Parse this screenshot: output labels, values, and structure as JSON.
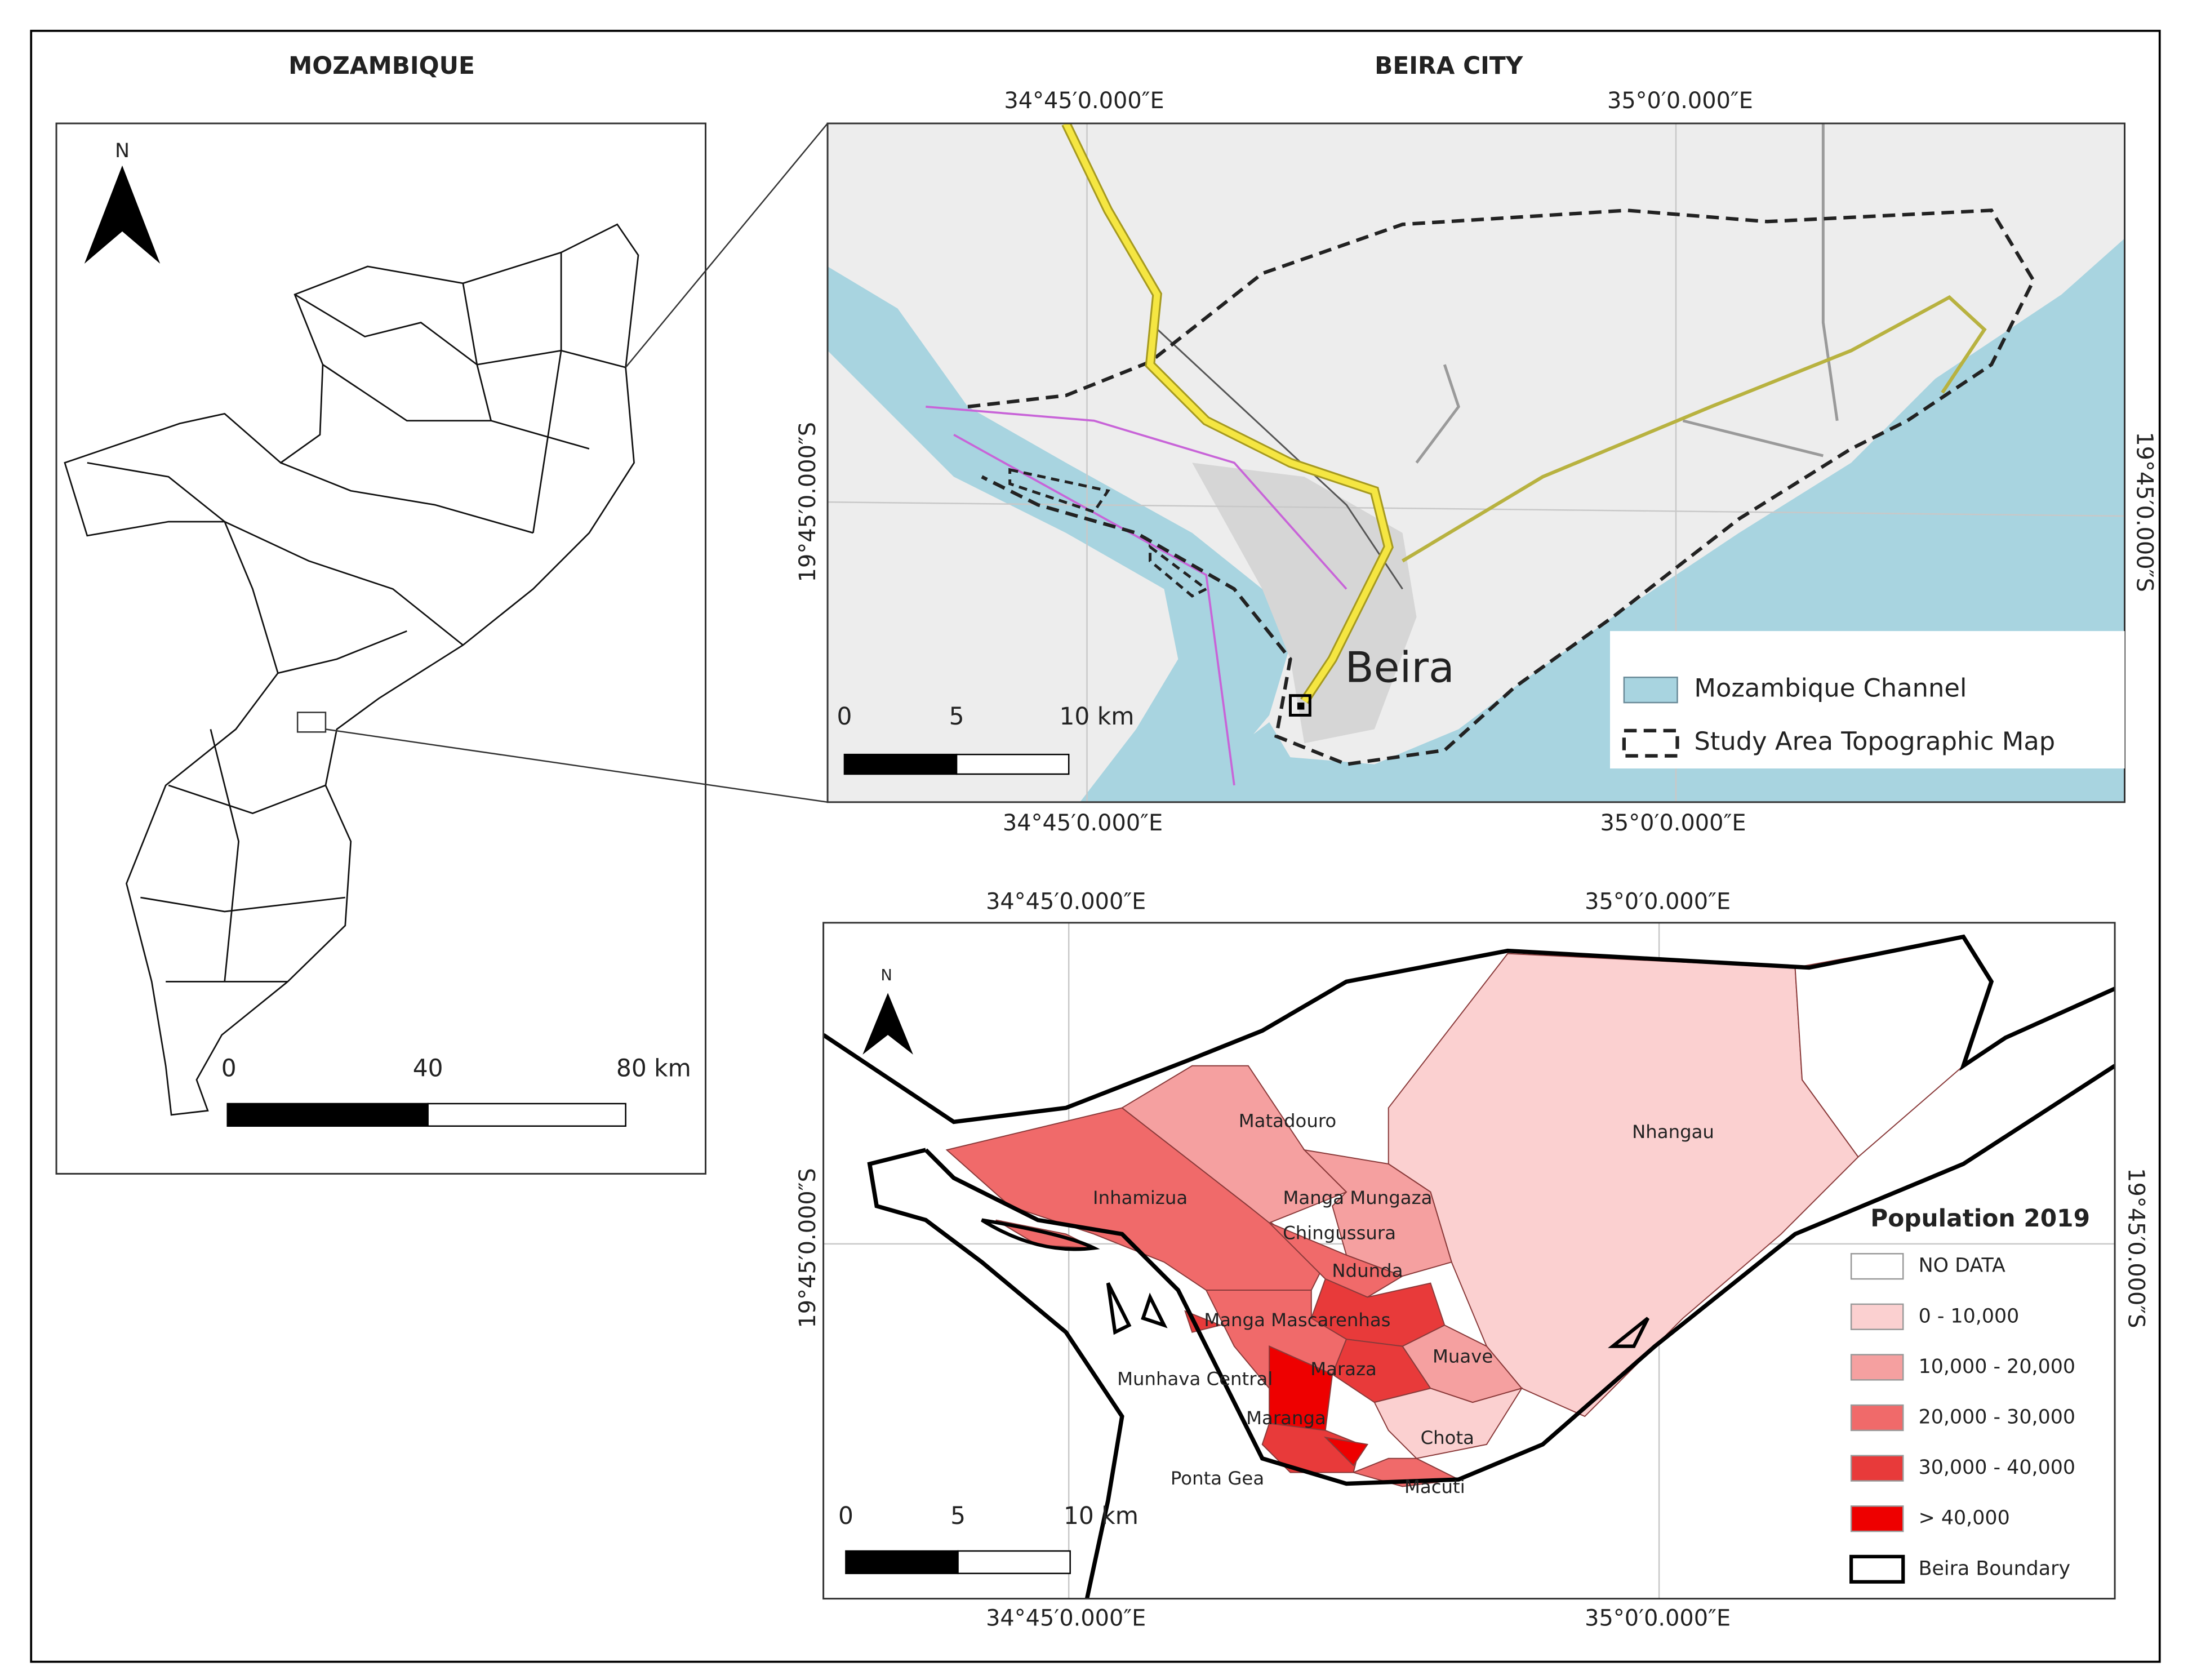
{
  "left_panel": {
    "title": "MOZAMBIQUE",
    "north": "N",
    "scale_labels": [
      "0",
      "40",
      "80 km"
    ]
  },
  "top_panel": {
    "title": "BEIRA CITY",
    "lon_top": [
      "34°45′0.000″E",
      "35°0′0.000″E"
    ],
    "lon_bottom": [
      "34°45′0.000″E",
      "35°0′0.000″E"
    ],
    "lat_left": "19°45′0.000″S",
    "lat_right": "19°45′0.000″S",
    "place_label": "Beira",
    "scale_labels": [
      "0",
      "5",
      "10 km"
    ],
    "legend": [
      {
        "label": "Mozambique Channel",
        "color": "#a8d4e0"
      },
      {
        "label": "Study Area Topographic Map",
        "color": "#ffffff"
      }
    ]
  },
  "bottom_panel": {
    "lon_top": [
      "34°45′0.000″E",
      "35°0′0.000″E"
    ],
    "lon_bottom": [
      "34°45′0.000″E",
      "35°0′0.000″E"
    ],
    "lat_left": "19°45′0.000″S",
    "lat_right": "19°45′0.000″S",
    "north": "N",
    "scale_labels": [
      "0",
      "5",
      "10 km"
    ],
    "neighbourhoods": [
      "Matadouro",
      "Nhangau",
      "Inhamizua",
      "Manga Mungaza",
      "Chingussura",
      "Ndunda",
      "Manga Mascarenhas",
      "Munhava Central",
      "Maraza",
      "Muave",
      "Chota",
      "Maranga",
      "Ponta Gea",
      "Macuti"
    ],
    "legend_title": "Population 2019",
    "legend": [
      {
        "label": "NO DATA",
        "color": "#ffffff"
      },
      {
        "label": "0 - 10,000",
        "color": "#fbd0d0"
      },
      {
        "label": "10,000 - 20,000",
        "color": "#f5a0a0"
      },
      {
        "label": "20,000 - 30,000",
        "color": "#f06a6a"
      },
      {
        "label": "30,000 - 40,000",
        "color": "#e83a3a"
      },
      {
        "label": "> 40,000",
        "color": "#ee0000"
      },
      {
        "label": "Beira Boundary",
        "color": "#ffffff"
      }
    ]
  }
}
